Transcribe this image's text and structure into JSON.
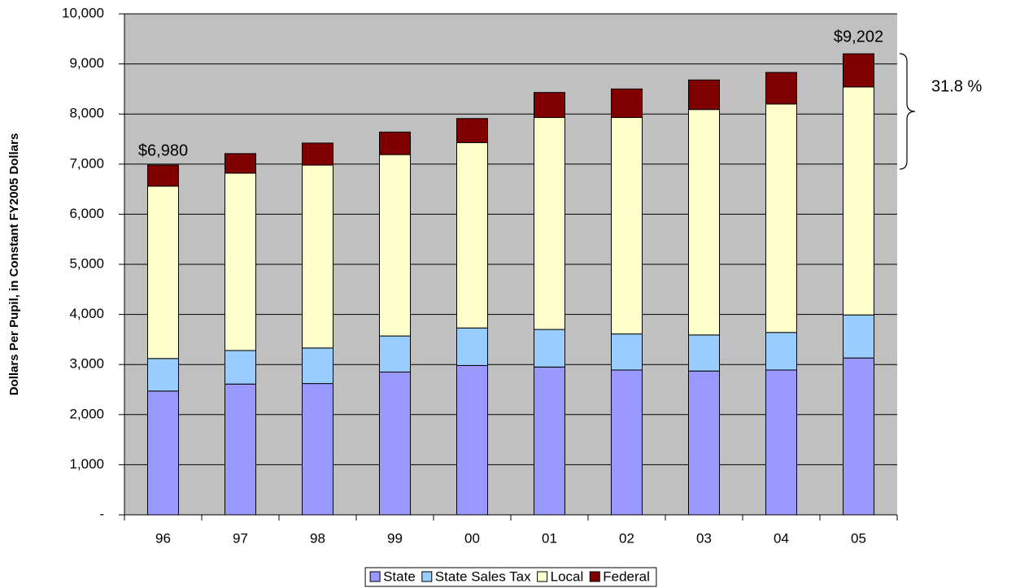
{
  "chart_data": {
    "type": "stacked-bar",
    "y_label": "Dollars Per Pupil, in Constant FY2005 Dollars",
    "categories": [
      "96",
      "97",
      "98",
      "99",
      "00",
      "01",
      "02",
      "03",
      "04",
      "05"
    ],
    "series": [
      {
        "name": "State",
        "color": "#9999ff",
        "values": [
          2470,
          2610,
          2620,
          2850,
          2980,
          2950,
          2890,
          2870,
          2890,
          3130
        ]
      },
      {
        "name": "State Sales Tax",
        "color": "#99ccff",
        "values": [
          650,
          670,
          710,
          720,
          750,
          750,
          720,
          720,
          750,
          860
        ]
      },
      {
        "name": "Local",
        "color": "#ffffcc",
        "values": [
          3440,
          3540,
          3650,
          3620,
          3700,
          4230,
          4320,
          4500,
          4560,
          4550
        ]
      },
      {
        "name": "Federal",
        "color": "#800000",
        "values": [
          420,
          390,
          440,
          450,
          480,
          500,
          570,
          590,
          630,
          662
        ]
      }
    ],
    "annotations": [
      "$6,980",
      "$9,202",
      "31.8 %"
    ],
    "ylim": [
      0,
      10000
    ],
    "yticks": [
      {
        "value": 0,
        "label": "-"
      },
      {
        "value": 1000,
        "label": "1,000"
      },
      {
        "value": 2000,
        "label": "2,000"
      },
      {
        "value": 3000,
        "label": "3,000"
      },
      {
        "value": 4000,
        "label": "4,000"
      },
      {
        "value": 5000,
        "label": "5,000"
      },
      {
        "value": 6000,
        "label": "6,000"
      },
      {
        "value": 7000,
        "label": "7,000"
      },
      {
        "value": 8000,
        "label": "8,000"
      },
      {
        "value": 9000,
        "label": "9,000"
      },
      {
        "value": 10000,
        "label": "10,000"
      }
    ],
    "grid": true,
    "plot_background": "#c0c0c0",
    "legend": "bottom"
  }
}
